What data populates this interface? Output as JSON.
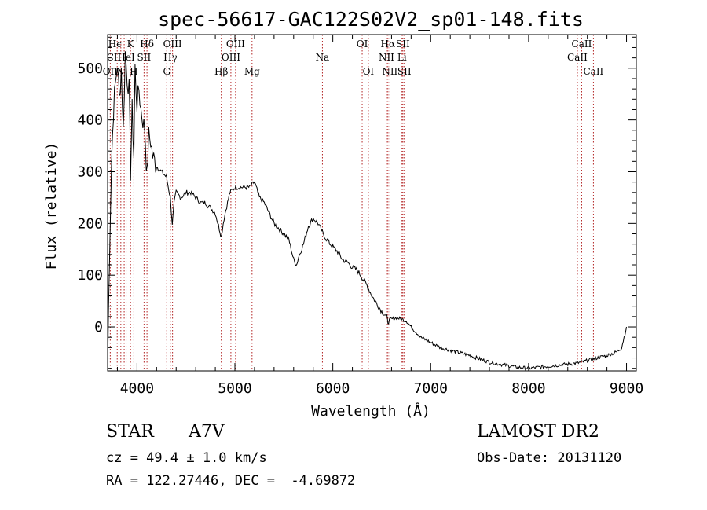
{
  "chart_data": {
    "type": "line",
    "title": "spec-56617-GAC122S02V2_sp01-148.fits",
    "xlabel": "Wavelength (Å)",
    "ylabel": "Flux (relative)",
    "xlim": [
      3700,
      9100
    ],
    "ylim": [
      -85,
      565
    ],
    "x_ticks": [
      4000,
      5000,
      6000,
      7000,
      8000,
      9000
    ],
    "y_ticks": [
      0,
      100,
      200,
      300,
      400,
      500
    ],
    "grid": false,
    "series": [
      {
        "x": [
          3700,
          3720,
          3740,
          3760,
          3780,
          3800,
          3820,
          3840,
          3860,
          3880,
          3900,
          3920,
          3934,
          3950,
          3968,
          3980,
          4000,
          4020,
          4040,
          4060,
          4080,
          4102,
          4120,
          4140,
          4160,
          4180,
          4200,
          4250,
          4300,
          4340,
          4360,
          4380,
          4400,
          4450,
          4500,
          4550,
          4600,
          4650,
          4700,
          4750,
          4800,
          4840,
          4861,
          4880,
          4900,
          4950,
          5000,
          5050,
          5100,
          5150,
          5200,
          5250,
          5300,
          5350,
          5400,
          5450,
          5500,
          5550,
          5600,
          5630,
          5650,
          5700,
          5750,
          5800,
          5850,
          5900,
          5950,
          6000,
          6050,
          6100,
          6150,
          6200,
          6250,
          6300,
          6350,
          6400,
          6450,
          6500,
          6550,
          6563,
          6600,
          6650,
          6700,
          6750,
          6800,
          6850,
          6900,
          6950,
          7000,
          7100,
          7200,
          7300,
          7400,
          7500,
          7600,
          7700,
          7800,
          7900,
          8000,
          8100,
          8200,
          8300,
          8400,
          8500,
          8600,
          8700,
          8800,
          8850,
          8900,
          8950,
          9000
        ],
        "y": [
          -80,
          150,
          320,
          420,
          470,
          510,
          440,
          500,
          380,
          530,
          480,
          460,
          300,
          420,
          330,
          500,
          430,
          460,
          420,
          400,
          380,
          290,
          370,
          360,
          330,
          320,
          310,
          300,
          290,
          250,
          200,
          240,
          260,
          250,
          260,
          260,
          250,
          240,
          240,
          230,
          220,
          190,
          175,
          200,
          220,
          260,
          270,
          270,
          270,
          270,
          280,
          250,
          240,
          220,
          200,
          190,
          180,
          170,
          130,
          120,
          135,
          160,
          195,
          210,
          200,
          180,
          165,
          155,
          145,
          130,
          125,
          115,
          110,
          95,
          80,
          60,
          45,
          30,
          20,
          10,
          15,
          18,
          15,
          12,
          0,
          -10,
          -20,
          -25,
          -30,
          -40,
          -45,
          -50,
          -55,
          -62,
          -68,
          -72,
          -75,
          -78,
          -80,
          -78,
          -76,
          -74,
          -72,
          -70,
          -65,
          -60,
          -55,
          -52,
          -48,
          -40,
          0
        ]
      }
    ],
    "spectral_lines": [
      {
        "wavelength": 3727,
        "label": "OII",
        "row": 2
      },
      {
        "wavelength": 3798,
        "label": "",
        "row": 0
      },
      {
        "wavelength": 3835,
        "label": "",
        "row": 0
      },
      {
        "wavelength": 3869,
        "label": "",
        "row": 0
      },
      {
        "wavelength": 3889,
        "label": "HeI",
        "row": 1
      },
      {
        "wavelength": 3934,
        "label": "K",
        "row": 0
      },
      {
        "wavelength": 3968,
        "label": "H",
        "row": 2
      },
      {
        "wavelength": 4072,
        "label": "SII",
        "row": 1
      },
      {
        "wavelength": 4102,
        "label": "Hδ",
        "row": 0
      },
      {
        "wavelength": 4304,
        "label": "G",
        "row": 2
      },
      {
        "wavelength": 4341,
        "label": "Hγ",
        "row": 1
      },
      {
        "wavelength": 4363,
        "label": "OIII",
        "row": 0
      },
      {
        "wavelength": 4861,
        "label": "Hβ",
        "row": 2
      },
      {
        "wavelength": 4959,
        "label": "OIII",
        "row": 1
      },
      {
        "wavelength": 5007,
        "label": "OIII",
        "row": 0
      },
      {
        "wavelength": 5175,
        "label": "Mg",
        "row": 2
      },
      {
        "wavelength": 5894,
        "label": "Na",
        "row": 1
      },
      {
        "wavelength": 6300,
        "label": "OI",
        "row": 0
      },
      {
        "wavelength": 6363,
        "label": "OI",
        "row": 2
      },
      {
        "wavelength": 6548,
        "label": "NII",
        "row": 1
      },
      {
        "wavelength": 6563,
        "label": "Hα",
        "row": 0
      },
      {
        "wavelength": 6583,
        "label": "NII",
        "row": 2
      },
      {
        "wavelength": 6707,
        "label": "Li",
        "row": 1
      },
      {
        "wavelength": 6716,
        "label": "SII",
        "row": 0
      },
      {
        "wavelength": 6731,
        "label": "SII",
        "row": 2
      },
      {
        "wavelength": 8498,
        "label": "CaII",
        "row": 1
      },
      {
        "wavelength": 8542,
        "label": "CaII",
        "row": 0
      },
      {
        "wavelength": 8662,
        "label": "CaII",
        "row": 2
      }
    ],
    "line_label_extras": [
      {
        "text": "Hϵ",
        "wavelength": 3775,
        "row": 0
      },
      {
        "text": "CII",
        "wavelength": 3765,
        "row": 1
      },
      {
        "text": "N",
        "wavelength": 3830,
        "row": 2
      }
    ]
  },
  "footer": {
    "object_class": "STAR",
    "subclass": "A7V",
    "redshift": "cz = 49.4 ± 1.0 km/s",
    "coords": "RA = 122.27446, DEC =  -4.69872",
    "survey": "LAMOST DR2",
    "obs_date": "Obs-Date: 20131120"
  },
  "colors": {
    "line_marker": "#b22222",
    "spectrum": "#000000"
  }
}
